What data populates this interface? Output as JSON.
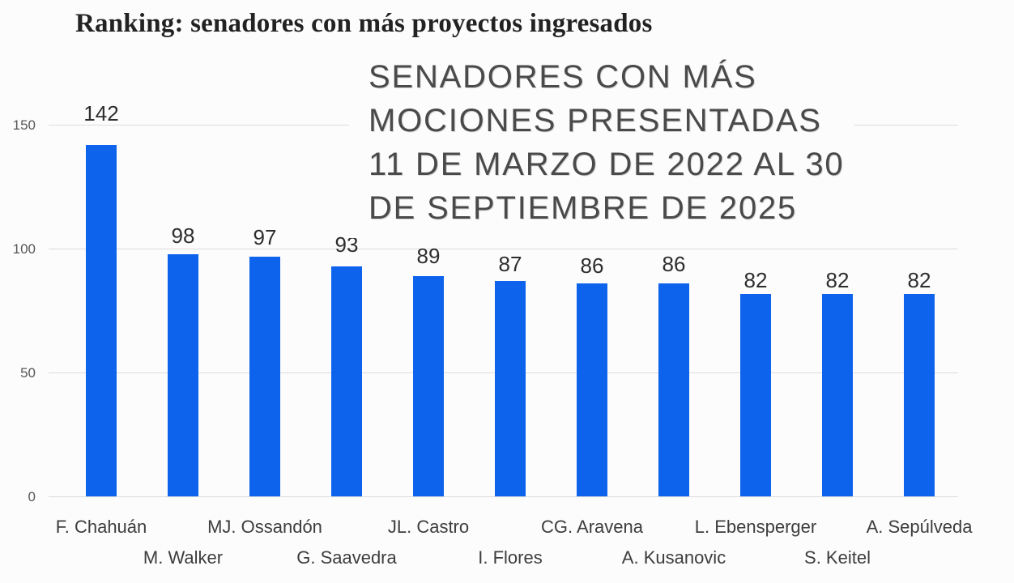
{
  "header": {
    "title": "Ranking: senadores con más proyectos ingresados"
  },
  "overlay_title": {
    "lines": [
      "SENADORES CON MÁS",
      "MOCIONES PRESENTADAS",
      "11 DE MARZO DE 2022 AL 30",
      "DE SEPTIEMBRE DE 2025"
    ]
  },
  "chart_data": {
    "type": "bar",
    "title": "SENADORES CON MÁS MOCIONES PRESENTADAS 11 DE MARZO DE 2022 AL 30 DE SEPTIEMBRE DE 2025",
    "header": "Ranking: senadores con más proyectos ingresados",
    "categories": [
      "F. Chahuán",
      "M. Walker",
      "MJ. Ossandón",
      "G. Saavedra",
      "JL. Castro",
      "I. Flores",
      "CG. Aravena",
      "A. Kusanovic",
      "L. Ebensperger",
      "S. Keitel",
      "A. Sepúlveda"
    ],
    "values": [
      142,
      98,
      97,
      93,
      89,
      87,
      86,
      86,
      82,
      82,
      82
    ],
    "yticks": [
      0,
      50,
      100,
      150
    ],
    "ylim": [
      0,
      160
    ],
    "xlabel": "",
    "ylabel": "",
    "grid": true,
    "legend_position": "none",
    "bar_color": "#0d63ec",
    "grid_color": "#dcdcdc",
    "value_label_color": "#2d2d2d",
    "axis_label_color": "#575757"
  }
}
